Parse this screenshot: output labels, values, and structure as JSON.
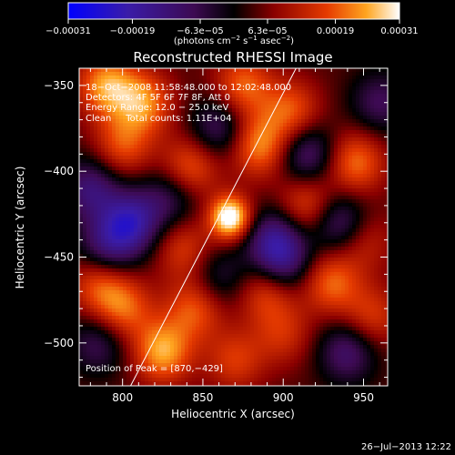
{
  "colorbar": {
    "ticks": [
      {
        "value": -0.00031,
        "label": "−0.00031"
      },
      {
        "value": -0.00019,
        "label": "−0.00019"
      },
      {
        "value": -6.3e-05,
        "label": "−6.3e−05"
      },
      {
        "value": 6.3e-05,
        "label": "6.3e−05"
      },
      {
        "value": 0.00019,
        "label": "0.00019"
      },
      {
        "value": 0.00031,
        "label": "0.00031"
      }
    ],
    "range": [
      -0.00031,
      0.00031
    ],
    "unit_parts": {
      "a": "(photons cm",
      "b": "−2",
      "c": " s",
      "d": "−1",
      "e": " asec",
      "f": "−2",
      "g": ")"
    }
  },
  "chart_data": {
    "type": "heatmap",
    "title": "Reconstructed RHESSI Image",
    "xlabel": "Heliocentric X (arcsec)",
    "ylabel": "Heliocentric Y (arcsec)",
    "xlim": [
      773,
      965
    ],
    "ylim": [
      -525,
      -340
    ],
    "xticks": [
      {
        "value": 800,
        "label": "800"
      },
      {
        "value": 850,
        "label": "850"
      },
      {
        "value": 900,
        "label": "900"
      },
      {
        "value": 950,
        "label": "950"
      }
    ],
    "yticks": [
      {
        "value": -350,
        "label": "−350"
      },
      {
        "value": -400,
        "label": "−400"
      },
      {
        "value": -450,
        "label": "−450"
      },
      {
        "value": -500,
        "label": "−500"
      }
    ],
    "limb_line": [
      [
        805,
        -525
      ],
      [
        908,
        -340
      ]
    ],
    "peak": {
      "x": 870,
      "y": -429
    },
    "sources": [
      {
        "x": 867,
        "y": -427,
        "value": 0.00031
      },
      {
        "x": 790,
        "y": -350,
        "value": 0.0002
      },
      {
        "x": 813,
        "y": -360,
        "value": 0.00018
      },
      {
        "x": 875,
        "y": -350,
        "value": 0.00016
      },
      {
        "x": 905,
        "y": -365,
        "value": 0.00015
      },
      {
        "x": 945,
        "y": -395,
        "value": 0.00017
      },
      {
        "x": 885,
        "y": -385,
        "value": 0.00019
      },
      {
        "x": 842,
        "y": -398,
        "value": 0.00016
      },
      {
        "x": 800,
        "y": -385,
        "value": 0.00014
      },
      {
        "x": 915,
        "y": -420,
        "value": 0.00015
      },
      {
        "x": 838,
        "y": -445,
        "value": 0.00012
      },
      {
        "x": 950,
        "y": -440,
        "value": 0.0001
      },
      {
        "x": 785,
        "y": -465,
        "value": 0.00014
      },
      {
        "x": 800,
        "y": -480,
        "value": 0.00016
      },
      {
        "x": 845,
        "y": -480,
        "value": 0.00015
      },
      {
        "x": 890,
        "y": -470,
        "value": 0.00014
      },
      {
        "x": 930,
        "y": -465,
        "value": 0.00016
      },
      {
        "x": 955,
        "y": -485,
        "value": 0.00012
      },
      {
        "x": 825,
        "y": -505,
        "value": 0.00021
      },
      {
        "x": 870,
        "y": -510,
        "value": 0.00012
      },
      {
        "x": 900,
        "y": -495,
        "value": 0.0001
      },
      {
        "x": 805,
        "y": -430,
        "value": -0.00022
      },
      {
        "x": 895,
        "y": -440,
        "value": -0.00018
      },
      {
        "x": 915,
        "y": -390,
        "value": -0.00016
      },
      {
        "x": 860,
        "y": -375,
        "value": -0.00014
      },
      {
        "x": 780,
        "y": -410,
        "value": -0.00016
      },
      {
        "x": 790,
        "y": -445,
        "value": -0.00015
      },
      {
        "x": 935,
        "y": -430,
        "value": -0.00017
      },
      {
        "x": 900,
        "y": -455,
        "value": -0.00014
      },
      {
        "x": 960,
        "y": -360,
        "value": -0.00012
      },
      {
        "x": 860,
        "y": -462,
        "value": -0.0001
      },
      {
        "x": 830,
        "y": -415,
        "value": -0.00012
      },
      {
        "x": 940,
        "y": -505,
        "value": -0.00015
      },
      {
        "x": 785,
        "y": -500,
        "value": -0.00012
      }
    ]
  },
  "info": {
    "line1": "18−Oct−2008 11:58:48.000 to 12:02:48.000",
    "line2": "Detectors: 4F 5F 6F 7F 8F, Att 0",
    "line3": "Energy Range: 12.0 − 25.0 keV",
    "line4": "Clean     Total counts: 1.11E+04",
    "peak_label": "Position of Peak = [870,−429]"
  },
  "footer": {
    "date": "26−Jul−2013 12:22"
  }
}
